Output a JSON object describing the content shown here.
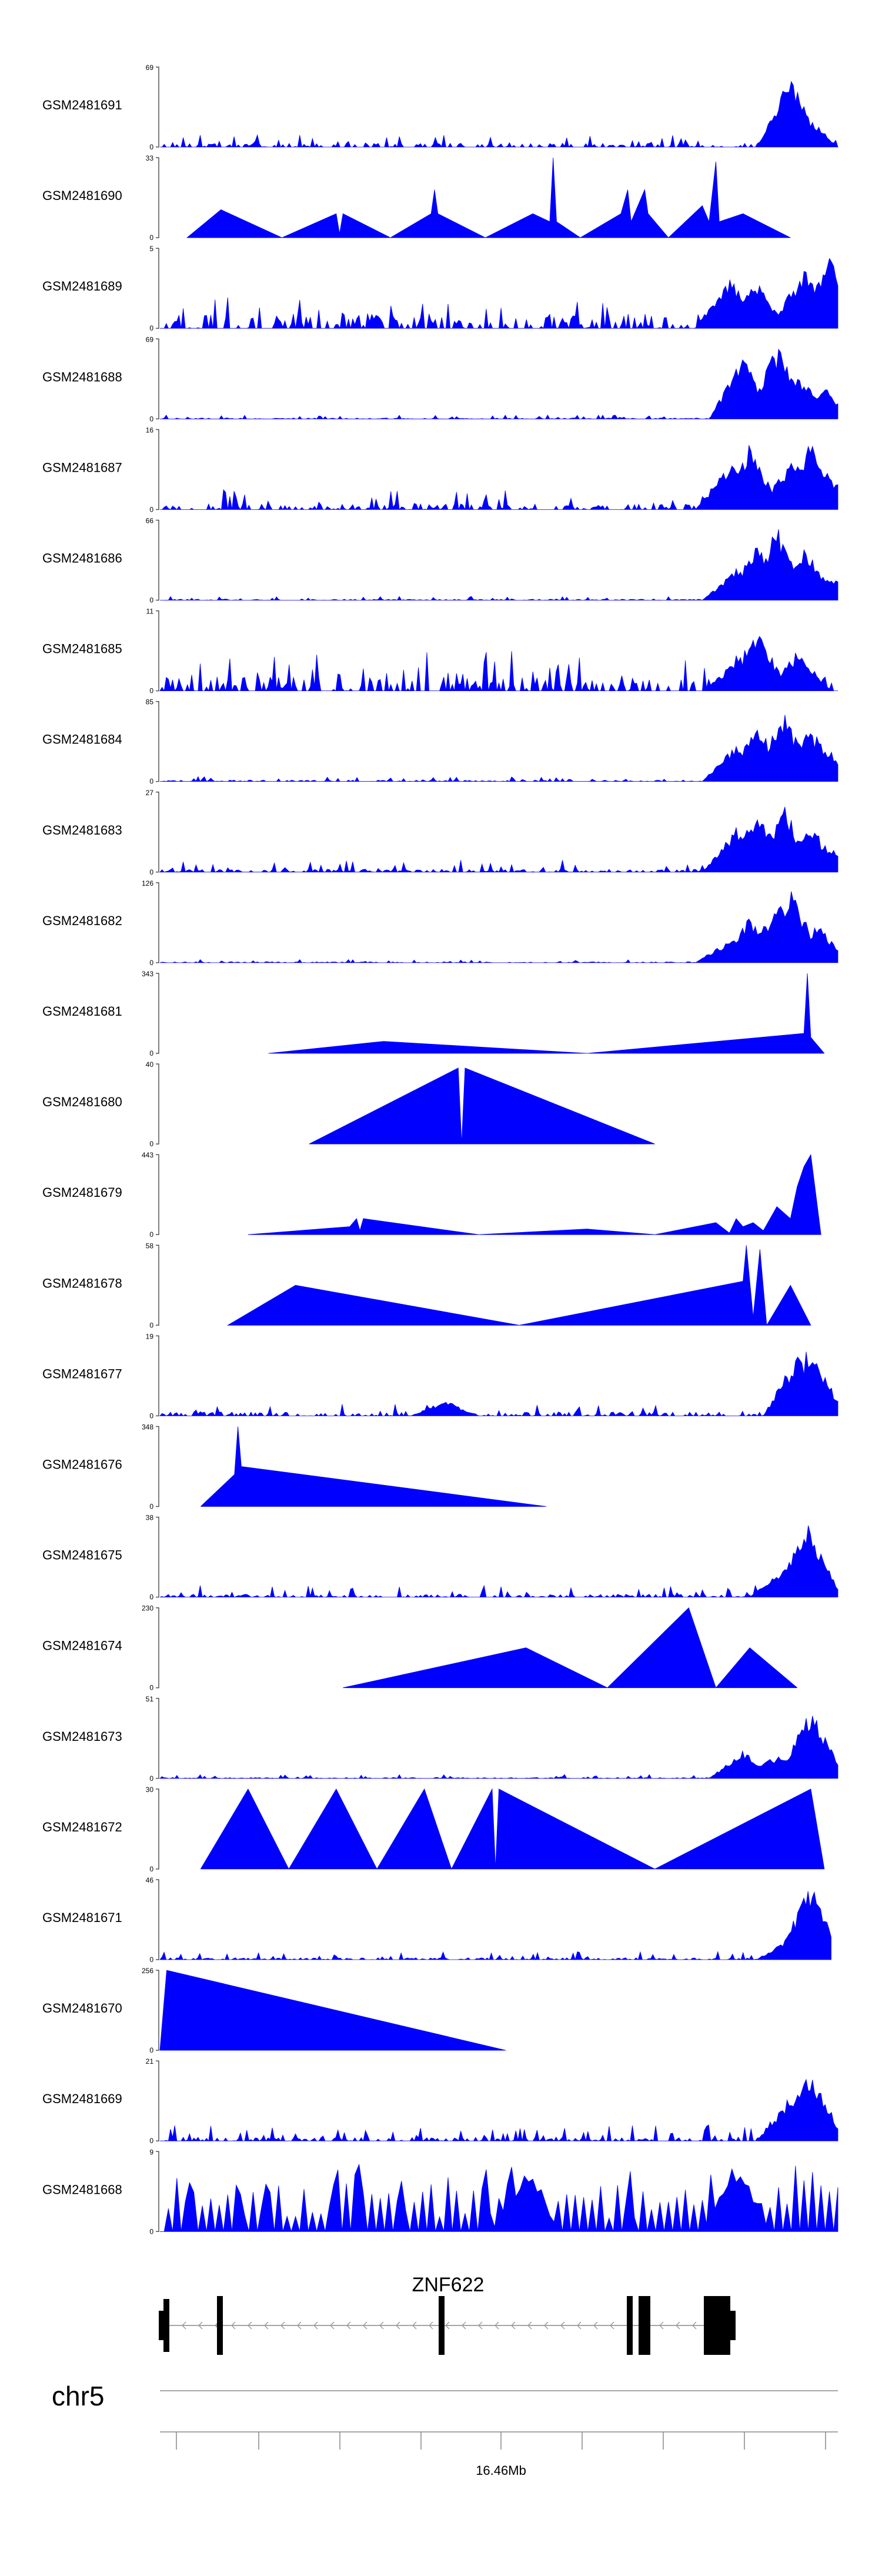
{
  "chart_data": {
    "type": "area",
    "title": "",
    "chromosome": "chr5",
    "axis_label": "16.46Mb",
    "gene": {
      "name": "ZNF622",
      "strand": "-"
    },
    "color": "#0000ff",
    "tracks": [
      {
        "name": "GSM2481691",
        "ymax": 69,
        "pattern": "noise",
        "level": 0.08,
        "peak": 0.15,
        "end": 1.0,
        "focus": [
          [
            0.93,
            0.9
          ],
          [
            0.95,
            0.45
          ]
        ]
      },
      {
        "name": "GSM2481690",
        "ymax": 33,
        "pattern": "triangles",
        "points": [
          [
            0.04,
            0
          ],
          [
            0.09,
            0.35
          ],
          [
            0.18,
            0
          ],
          [
            0.26,
            0.3
          ],
          [
            0.265,
            0.05
          ],
          [
            0.27,
            0.3
          ],
          [
            0.34,
            0
          ],
          [
            0.4,
            0.3
          ],
          [
            0.405,
            0.6
          ],
          [
            0.41,
            0.3
          ],
          [
            0.48,
            0
          ],
          [
            0.55,
            0.3
          ],
          [
            0.575,
            0.2
          ],
          [
            0.58,
            1.0
          ],
          [
            0.585,
            0.2
          ],
          [
            0.62,
            0
          ],
          [
            0.68,
            0.3
          ],
          [
            0.69,
            0.6
          ],
          [
            0.695,
            0.2
          ],
          [
            0.715,
            0.6
          ],
          [
            0.72,
            0.3
          ],
          [
            0.75,
            0
          ],
          [
            0.8,
            0.4
          ],
          [
            0.81,
            0.2
          ],
          [
            0.82,
            0.95
          ],
          [
            0.825,
            0.2
          ],
          [
            0.86,
            0.3
          ],
          [
            0.93,
            0
          ]
        ]
      },
      {
        "name": "GSM2481689",
        "ymax": 5,
        "pattern": "noise",
        "level": 0.3,
        "peak": 0.4,
        "end": 1.0,
        "focus": [
          [
            0.84,
            0.7
          ],
          [
            0.88,
            0.6
          ],
          [
            0.95,
            0.8
          ],
          [
            0.99,
            0.95
          ]
        ]
      },
      {
        "name": "GSM2481688",
        "ymax": 69,
        "pattern": "noise",
        "level": 0.02,
        "peak": 0.05,
        "end": 1.0,
        "focus": [
          [
            0.86,
            0.8
          ],
          [
            0.91,
            0.95
          ],
          [
            0.94,
            0.6
          ],
          [
            0.98,
            0.4
          ]
        ]
      },
      {
        "name": "GSM2481687",
        "ymax": 16,
        "pattern": "noise",
        "level": 0.12,
        "peak": 0.25,
        "end": 1.0,
        "focus": [
          [
            0.84,
            0.6
          ],
          [
            0.87,
            0.85
          ],
          [
            0.93,
            0.6
          ],
          [
            0.96,
            0.9
          ],
          [
            0.99,
            0.4
          ]
        ]
      },
      {
        "name": "GSM2481686",
        "ymax": 66,
        "pattern": "noise",
        "level": 0.02,
        "peak": 0.05,
        "end": 1.0,
        "focus": [
          [
            0.85,
            0.4
          ],
          [
            0.88,
            0.75
          ],
          [
            0.91,
            0.95
          ],
          [
            0.95,
            0.7
          ],
          [
            0.99,
            0.3
          ]
        ]
      },
      {
        "name": "GSM2481685",
        "ymax": 11,
        "pattern": "noise",
        "level": 0.3,
        "peak": 0.5,
        "end": 1.0,
        "focus": [
          [
            0.85,
            0.4
          ],
          [
            0.88,
            0.8
          ],
          [
            0.94,
            0.5
          ]
        ]
      },
      {
        "name": "GSM2481684",
        "ymax": 85,
        "pattern": "noise",
        "level": 0.03,
        "peak": 0.06,
        "end": 1.0,
        "focus": [
          [
            0.85,
            0.5
          ],
          [
            0.88,
            0.75
          ],
          [
            0.92,
            0.9
          ],
          [
            0.96,
            0.7
          ],
          [
            0.99,
            0.4
          ]
        ]
      },
      {
        "name": "GSM2481683",
        "ymax": 27,
        "pattern": "noise",
        "level": 0.06,
        "peak": 0.15,
        "end": 1.0,
        "focus": [
          [
            0.85,
            0.6
          ],
          [
            0.88,
            0.8
          ],
          [
            0.92,
            0.85
          ],
          [
            0.96,
            0.6
          ],
          [
            0.99,
            0.3
          ]
        ]
      },
      {
        "name": "GSM2481682",
        "ymax": 126,
        "pattern": "noise",
        "level": 0.02,
        "peak": 0.04,
        "end": 1.0,
        "focus": [
          [
            0.84,
            0.3
          ],
          [
            0.87,
            0.6
          ],
          [
            0.91,
            0.8
          ],
          [
            0.93,
            0.95
          ],
          [
            0.97,
            0.5
          ]
        ]
      },
      {
        "name": "GSM2481681",
        "ymax": 343,
        "pattern": "triangles",
        "points": [
          [
            0.16,
            0
          ],
          [
            0.33,
            0.15
          ],
          [
            0.63,
            0
          ],
          [
            0.95,
            0.25
          ],
          [
            0.955,
            1.0
          ],
          [
            0.96,
            0.2
          ],
          [
            0.98,
            0
          ]
        ]
      },
      {
        "name": "GSM2481680",
        "ymax": 40,
        "pattern": "triangles",
        "points": [
          [
            0.22,
            0
          ],
          [
            0.44,
            0.95
          ],
          [
            0.445,
            0
          ],
          [
            0.45,
            0.95
          ],
          [
            0.73,
            0
          ]
        ]
      },
      {
        "name": "GSM2481679",
        "ymax": 443,
        "pattern": "triangles",
        "points": [
          [
            0.13,
            0
          ],
          [
            0.28,
            0.1
          ],
          [
            0.29,
            0.2
          ],
          [
            0.295,
            0.05
          ],
          [
            0.3,
            0.2
          ],
          [
            0.47,
            0
          ],
          [
            0.63,
            0.07
          ],
          [
            0.73,
            0
          ],
          [
            0.82,
            0.15
          ],
          [
            0.84,
            0.02
          ],
          [
            0.85,
            0.2
          ],
          [
            0.86,
            0.1
          ],
          [
            0.875,
            0.15
          ],
          [
            0.89,
            0.05
          ],
          [
            0.91,
            0.35
          ],
          [
            0.93,
            0.2
          ],
          [
            0.94,
            0.6
          ],
          [
            0.95,
            0.85
          ],
          [
            0.96,
            1.0
          ],
          [
            0.975,
            0
          ]
        ]
      },
      {
        "name": "GSM2481678",
        "ymax": 58,
        "pattern": "triangles",
        "points": [
          [
            0.1,
            0
          ],
          [
            0.2,
            0.5
          ],
          [
            0.53,
            0
          ],
          [
            0.86,
            0.55
          ],
          [
            0.865,
            1.0
          ],
          [
            0.875,
            0.1
          ],
          [
            0.885,
            0.95
          ],
          [
            0.895,
            0
          ],
          [
            0.93,
            0.5
          ],
          [
            0.96,
            0
          ]
        ]
      },
      {
        "name": "GSM2481677",
        "ymax": 19,
        "pattern": "noise",
        "level": 0.08,
        "peak": 0.15,
        "end": 1.0,
        "focus": [
          [
            0.42,
            0.2
          ],
          [
            0.94,
            0.8
          ],
          [
            0.96,
            0.95
          ]
        ]
      },
      {
        "name": "GSM2481676",
        "ymax": 348,
        "pattern": "triangles",
        "points": [
          [
            0.06,
            0
          ],
          [
            0.11,
            0.4
          ],
          [
            0.115,
            1.0
          ],
          [
            0.12,
            0.5
          ],
          [
            0.57,
            0
          ]
        ]
      },
      {
        "name": "GSM2481675",
        "ymax": 38,
        "pattern": "noise",
        "level": 0.06,
        "peak": 0.15,
        "end": 1.0,
        "focus": [
          [
            0.92,
            0.4
          ],
          [
            0.955,
            0.95
          ],
          [
            0.97,
            0.3
          ]
        ]
      },
      {
        "name": "GSM2481674",
        "ymax": 230,
        "pattern": "triangles",
        "points": [
          [
            0.27,
            0
          ],
          [
            0.54,
            0.5
          ],
          [
            0.66,
            0
          ],
          [
            0.78,
            1.0
          ],
          [
            0.82,
            0
          ],
          [
            0.87,
            0.5
          ],
          [
            0.94,
            0
          ]
        ]
      },
      {
        "name": "GSM2481673",
        "ymax": 51,
        "pattern": "noise",
        "level": 0.02,
        "peak": 0.05,
        "end": 1.0,
        "focus": [
          [
            0.86,
            0.35
          ],
          [
            0.91,
            0.3
          ],
          [
            0.96,
            0.95
          ]
        ]
      },
      {
        "name": "GSM2481672",
        "ymax": 30,
        "pattern": "triangles",
        "points": [
          [
            0.06,
            0
          ],
          [
            0.13,
            1.0
          ],
          [
            0.19,
            0
          ],
          [
            0.26,
            1.0
          ],
          [
            0.32,
            0
          ],
          [
            0.39,
            1.0
          ],
          [
            0.43,
            0
          ],
          [
            0.49,
            1.0
          ],
          [
            0.495,
            0
          ],
          [
            0.5,
            1.0
          ],
          [
            0.73,
            0
          ],
          [
            0.96,
            1.0
          ],
          [
            0.98,
            0
          ]
        ]
      },
      {
        "name": "GSM2481671",
        "ymax": 46,
        "pattern": "noise",
        "level": 0.04,
        "peak": 0.1,
        "end": 0.99,
        "focus": [
          [
            0.93,
            0.3
          ],
          [
            0.96,
            1.0
          ]
        ]
      },
      {
        "name": "GSM2481670",
        "ymax": 256,
        "pattern": "triangles",
        "points": [
          [
            0.0,
            0
          ],
          [
            0.01,
            1.0
          ],
          [
            0.51,
            0
          ]
        ]
      },
      {
        "name": "GSM2481669",
        "ymax": 21,
        "pattern": "noise",
        "level": 0.08,
        "peak": 0.2,
        "end": 1.0,
        "focus": [
          [
            0.93,
            0.6
          ],
          [
            0.96,
            0.95
          ]
        ]
      },
      {
        "name": "GSM2481668",
        "ymax": 9,
        "pattern": "spikes",
        "level": 0.5,
        "peak": 0.7,
        "end": 1.0,
        "focus": [
          [
            0.54,
            0.9
          ],
          [
            0.85,
            0.95
          ]
        ]
      }
    ]
  }
}
